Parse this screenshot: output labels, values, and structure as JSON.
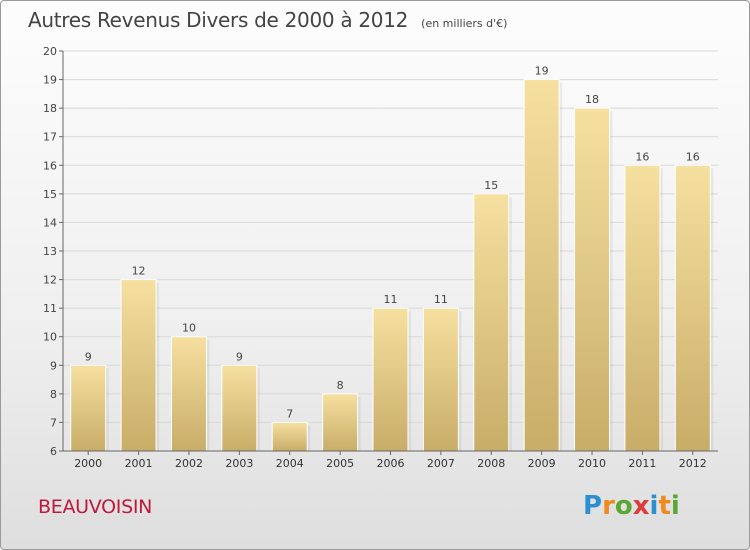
{
  "title": "Autres Revenus Divers de 2000 à 2012",
  "unit": "(en milliers d'€)",
  "location": "BEAUVOISIN",
  "brand": {
    "name": "Proxiti",
    "letters": [
      {
        "ch": "P",
        "color": "#2e8fd0"
      },
      {
        "ch": "r",
        "color": "#f08a1c"
      },
      {
        "ch": "o",
        "color": "#5aa832"
      },
      {
        "ch": "x",
        "color": "#e03a3a"
      },
      {
        "ch": "i",
        "color": "#2e8fd0"
      },
      {
        "ch": "t",
        "color": "#f08a1c"
      },
      {
        "ch": "i",
        "color": "#5aa832"
      }
    ]
  },
  "colors": {
    "bar_top": "#f6e0a0",
    "bar_bottom": "#c8ad68",
    "grid": "#d8d8d8",
    "axis": "#666666"
  },
  "chart_data": {
    "type": "bar",
    "categories": [
      "2000",
      "2001",
      "2002",
      "2003",
      "2004",
      "2005",
      "2006",
      "2007",
      "2008",
      "2009",
      "2010",
      "2011",
      "2012"
    ],
    "values": [
      9,
      12,
      10,
      9,
      7,
      8,
      11,
      11,
      15,
      19,
      18,
      16,
      16
    ],
    "ylim": [
      6,
      20
    ],
    "yticks": [
      6,
      7,
      8,
      9,
      10,
      11,
      12,
      13,
      14,
      15,
      16,
      17,
      18,
      19,
      20
    ],
    "grid": true,
    "data_labels": true
  }
}
